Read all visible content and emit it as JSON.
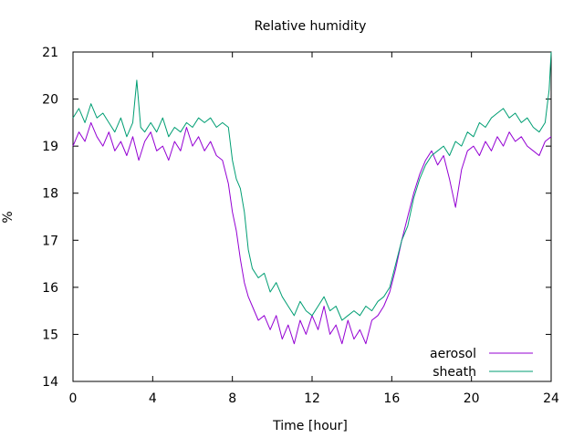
{
  "chart_data": {
    "type": "line",
    "title": "Relative humidity",
    "xlabel": "Time [hour]",
    "ylabel": "%",
    "xlim": [
      0,
      24
    ],
    "ylim": [
      14,
      21
    ],
    "x_ticks": [
      0,
      4,
      8,
      12,
      16,
      20,
      24
    ],
    "y_ticks": [
      14,
      15,
      16,
      17,
      18,
      19,
      20,
      21
    ],
    "grid": false,
    "legend_position": "bottom-right",
    "series": [
      {
        "name": "aerosol",
        "color": "#9400d3",
        "points": [
          [
            0.0,
            19.0
          ],
          [
            0.3,
            19.3
          ],
          [
            0.6,
            19.1
          ],
          [
            0.9,
            19.5
          ],
          [
            1.2,
            19.2
          ],
          [
            1.5,
            19.0
          ],
          [
            1.8,
            19.3
          ],
          [
            2.1,
            18.9
          ],
          [
            2.4,
            19.1
          ],
          [
            2.7,
            18.8
          ],
          [
            3.0,
            19.2
          ],
          [
            3.3,
            18.7
          ],
          [
            3.6,
            19.1
          ],
          [
            3.9,
            19.3
          ],
          [
            4.2,
            18.9
          ],
          [
            4.5,
            19.0
          ],
          [
            4.8,
            18.7
          ],
          [
            5.1,
            19.1
          ],
          [
            5.4,
            18.9
          ],
          [
            5.7,
            19.4
          ],
          [
            6.0,
            19.0
          ],
          [
            6.3,
            19.2
          ],
          [
            6.6,
            18.9
          ],
          [
            6.9,
            19.1
          ],
          [
            7.2,
            18.8
          ],
          [
            7.5,
            18.7
          ],
          [
            7.8,
            18.2
          ],
          [
            8.0,
            17.6
          ],
          [
            8.2,
            17.2
          ],
          [
            8.4,
            16.6
          ],
          [
            8.6,
            16.1
          ],
          [
            8.8,
            15.8
          ],
          [
            9.0,
            15.6
          ],
          [
            9.3,
            15.3
          ],
          [
            9.6,
            15.4
          ],
          [
            9.9,
            15.1
          ],
          [
            10.2,
            15.4
          ],
          [
            10.5,
            14.9
          ],
          [
            10.8,
            15.2
          ],
          [
            11.1,
            14.8
          ],
          [
            11.4,
            15.3
          ],
          [
            11.7,
            15.0
          ],
          [
            12.0,
            15.4
          ],
          [
            12.3,
            15.1
          ],
          [
            12.6,
            15.6
          ],
          [
            12.9,
            15.0
          ],
          [
            13.2,
            15.2
          ],
          [
            13.5,
            14.8
          ],
          [
            13.8,
            15.3
          ],
          [
            14.1,
            14.9
          ],
          [
            14.4,
            15.1
          ],
          [
            14.7,
            14.8
          ],
          [
            15.0,
            15.3
          ],
          [
            15.3,
            15.4
          ],
          [
            15.6,
            15.6
          ],
          [
            15.9,
            15.9
          ],
          [
            16.2,
            16.4
          ],
          [
            16.5,
            17.0
          ],
          [
            16.8,
            17.5
          ],
          [
            17.1,
            18.0
          ],
          [
            17.4,
            18.4
          ],
          [
            17.7,
            18.7
          ],
          [
            18.0,
            18.9
          ],
          [
            18.3,
            18.6
          ],
          [
            18.6,
            18.8
          ],
          [
            18.9,
            18.3
          ],
          [
            19.2,
            17.7
          ],
          [
            19.5,
            18.5
          ],
          [
            19.8,
            18.9
          ],
          [
            20.1,
            19.0
          ],
          [
            20.4,
            18.8
          ],
          [
            20.7,
            19.1
          ],
          [
            21.0,
            18.9
          ],
          [
            21.3,
            19.2
          ],
          [
            21.6,
            19.0
          ],
          [
            21.9,
            19.3
          ],
          [
            22.2,
            19.1
          ],
          [
            22.5,
            19.2
          ],
          [
            22.8,
            19.0
          ],
          [
            23.1,
            18.9
          ],
          [
            23.4,
            18.8
          ],
          [
            23.7,
            19.1
          ],
          [
            24.0,
            19.2
          ]
        ]
      },
      {
        "name": "sheath",
        "color": "#009e73",
        "points": [
          [
            0.0,
            19.6
          ],
          [
            0.3,
            19.8
          ],
          [
            0.6,
            19.5
          ],
          [
            0.9,
            19.9
          ],
          [
            1.2,
            19.6
          ],
          [
            1.5,
            19.7
          ],
          [
            1.8,
            19.5
          ],
          [
            2.1,
            19.3
          ],
          [
            2.4,
            19.6
          ],
          [
            2.7,
            19.2
          ],
          [
            3.0,
            19.5
          ],
          [
            3.2,
            20.4
          ],
          [
            3.4,
            19.4
          ],
          [
            3.6,
            19.3
          ],
          [
            3.9,
            19.5
          ],
          [
            4.2,
            19.3
          ],
          [
            4.5,
            19.6
          ],
          [
            4.8,
            19.2
          ],
          [
            5.1,
            19.4
          ],
          [
            5.4,
            19.3
          ],
          [
            5.7,
            19.5
          ],
          [
            6.0,
            19.4
          ],
          [
            6.3,
            19.6
          ],
          [
            6.6,
            19.5
          ],
          [
            6.9,
            19.6
          ],
          [
            7.2,
            19.4
          ],
          [
            7.5,
            19.5
          ],
          [
            7.8,
            19.4
          ],
          [
            8.0,
            18.7
          ],
          [
            8.2,
            18.3
          ],
          [
            8.4,
            18.1
          ],
          [
            8.6,
            17.6
          ],
          [
            8.8,
            16.8
          ],
          [
            9.0,
            16.4
          ],
          [
            9.3,
            16.2
          ],
          [
            9.6,
            16.3
          ],
          [
            9.9,
            15.9
          ],
          [
            10.2,
            16.1
          ],
          [
            10.5,
            15.8
          ],
          [
            10.8,
            15.6
          ],
          [
            11.1,
            15.4
          ],
          [
            11.4,
            15.7
          ],
          [
            11.7,
            15.5
          ],
          [
            12.0,
            15.4
          ],
          [
            12.3,
            15.6
          ],
          [
            12.6,
            15.8
          ],
          [
            12.9,
            15.5
          ],
          [
            13.2,
            15.6
          ],
          [
            13.5,
            15.3
          ],
          [
            13.8,
            15.4
          ],
          [
            14.1,
            15.5
          ],
          [
            14.4,
            15.4
          ],
          [
            14.7,
            15.6
          ],
          [
            15.0,
            15.5
          ],
          [
            15.3,
            15.7
          ],
          [
            15.6,
            15.8
          ],
          [
            15.9,
            16.0
          ],
          [
            16.2,
            16.5
          ],
          [
            16.5,
            17.0
          ],
          [
            16.8,
            17.3
          ],
          [
            17.1,
            17.9
          ],
          [
            17.4,
            18.3
          ],
          [
            17.7,
            18.6
          ],
          [
            18.0,
            18.8
          ],
          [
            18.3,
            18.9
          ],
          [
            18.6,
            19.0
          ],
          [
            18.9,
            18.8
          ],
          [
            19.2,
            19.1
          ],
          [
            19.5,
            19.0
          ],
          [
            19.8,
            19.3
          ],
          [
            20.1,
            19.2
          ],
          [
            20.4,
            19.5
          ],
          [
            20.7,
            19.4
          ],
          [
            21.0,
            19.6
          ],
          [
            21.3,
            19.7
          ],
          [
            21.6,
            19.8
          ],
          [
            21.9,
            19.6
          ],
          [
            22.2,
            19.7
          ],
          [
            22.5,
            19.5
          ],
          [
            22.8,
            19.6
          ],
          [
            23.1,
            19.4
          ],
          [
            23.4,
            19.3
          ],
          [
            23.7,
            19.5
          ],
          [
            23.9,
            20.2
          ],
          [
            24.0,
            21.0
          ]
        ]
      }
    ]
  }
}
